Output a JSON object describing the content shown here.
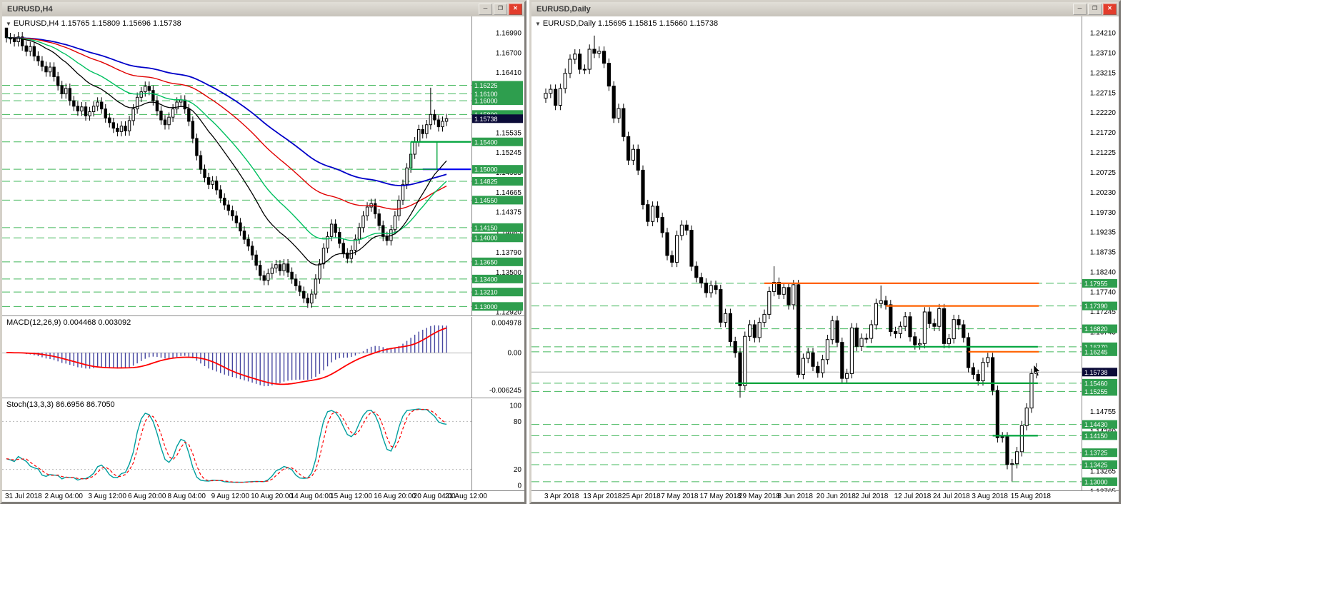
{
  "colors": {
    "level_dash": "#43b85c",
    "badge_green": "#2e9e4e",
    "badge_current": "#0b0b38",
    "green": "#00a43c",
    "orange": "#ff6200",
    "blue": "#0000f0",
    "macd_bar": "#4646a0",
    "stoch_main": "#009e9e"
  },
  "windows": [
    {
      "title": "EURUSD,H4",
      "buttons": {
        "minimize": "─",
        "restore": "❐",
        "close": "✕"
      },
      "header_line": "EURUSD,H4  1.15765 1.15809 1.15696 1.15738",
      "indicators": [
        {
          "label": "MACD(12,26,9) 0.004468 0.003092",
          "axis": [
            "0.004978",
            "0.00",
            "-0.006245"
          ]
        },
        {
          "label": "Stoch(13,3,3) 86.6956 86.7050",
          "axis": [
            "100",
            "80",
            "20",
            "0"
          ]
        }
      ]
    },
    {
      "title": "EURUSD,Daily",
      "buttons": {
        "minimize": "─",
        "restore": "❐",
        "close": "✕"
      },
      "header_line": "EURUSD,Daily  1.15695 1.15815 1.15660 1.15738"
    }
  ],
  "chart_data": [
    {
      "type": "candlestick",
      "title": "EURUSD H4",
      "timeframe": "H4",
      "ylim": [
        1.1289,
        1.1713
      ],
      "current_price": 1.15738,
      "open_first": 1.1706,
      "default_wick": 0.0007,
      "closes": [
        1.1692,
        1.169,
        1.1686,
        1.1693,
        1.168,
        1.1672,
        1.1679,
        1.1665,
        1.1658,
        1.165,
        1.1642,
        1.1649,
        1.1635,
        1.1622,
        1.161,
        1.1618,
        1.16,
        1.1592,
        1.1585,
        1.1591,
        1.1578,
        1.1584,
        1.1592,
        1.1598,
        1.1588,
        1.1575,
        1.1568,
        1.156,
        1.1555,
        1.1563,
        1.1556,
        1.1571,
        1.1588,
        1.1605,
        1.1613,
        1.1621,
        1.1615,
        1.16,
        1.1585,
        1.1572,
        1.1565,
        1.1576,
        1.1588,
        1.1598,
        1.1601,
        1.1588,
        1.157,
        1.1545,
        1.152,
        1.15,
        1.1488,
        1.1478,
        1.1483,
        1.147,
        1.1458,
        1.1448,
        1.144,
        1.1432,
        1.1422,
        1.141,
        1.1398,
        1.1388,
        1.1375,
        1.136,
        1.1345,
        1.1338,
        1.1348,
        1.1356,
        1.1361,
        1.1352,
        1.1362,
        1.135,
        1.134,
        1.133,
        1.1322,
        1.1312,
        1.1305,
        1.1318,
        1.134,
        1.1362,
        1.1385,
        1.1402,
        1.142,
        1.1408,
        1.1392,
        1.1378,
        1.137,
        1.1382,
        1.1398,
        1.1415,
        1.1432,
        1.1445,
        1.145,
        1.1435,
        1.1418,
        1.1402,
        1.1396,
        1.1412,
        1.1432,
        1.1455,
        1.1478,
        1.1502,
        1.1522,
        1.154,
        1.1558,
        1.1552,
        1.1565,
        1.158,
        1.1572,
        1.1562,
        1.157,
        1.15738
      ],
      "wick_overrides": {
        "0": {
          "high": 1.1706
        },
        "76": {
          "low": 1.1298
        },
        "107": {
          "high": 1.1619
        }
      },
      "axis_labels": [
        "1.16990",
        "1.16700",
        "1.16410",
        "1.16120",
        "1.15825",
        "1.15535",
        "1.15245",
        "1.14955",
        "1.14665",
        "1.14375",
        "1.14085",
        "1.13790",
        "1.13500",
        "1.13210",
        "1.12920"
      ],
      "levels": [
        1.16225,
        1.161,
        1.16,
        1.158,
        1.154,
        1.15,
        1.14825,
        1.1455,
        1.1415,
        1.14,
        1.1365,
        1.134,
        1.1321,
        1.13
      ],
      "solid_lines": [
        {
          "price": 1.154,
          "from": 102,
          "to": 118,
          "color": "green"
        },
        {
          "price": 1.15,
          "from": 105,
          "to": 119,
          "color": "blue"
        }
      ],
      "rects": [
        {
          "from": 102,
          "to": 108.6,
          "p1": 1.154,
          "p2": 1.15,
          "color": "green"
        }
      ],
      "timeline": {
        "indices": [
          0,
          10,
          21,
          31,
          41,
          52,
          62,
          72,
          82,
          93,
          103,
          111
        ],
        "labels": [
          "31 Jul 2018",
          "2 Aug 04:00",
          "3 Aug 12:00",
          "6 Aug 20:00",
          "8 Aug 04:00",
          "9 Aug 12:00",
          "10 Aug 20:00",
          "14 Aug 04:00",
          "15 Aug 12:00",
          "16 Aug 20:00",
          "20 Aug 04:00",
          "21 Aug 12:00"
        ]
      }
    },
    {
      "type": "candlestick",
      "title": "EURUSD Daily",
      "timeframe": "Daily",
      "ylim": [
        1.1276,
        1.2421
      ],
      "current_price": 1.15738,
      "open_first": 1.2258,
      "default_wick": 0.0012,
      "closes": [
        1.227,
        1.228,
        1.224,
        1.2282,
        1.232,
        1.2355,
        1.2368,
        1.233,
        1.233,
        1.238,
        1.237,
        1.2375,
        1.2345,
        1.2288,
        1.2208,
        1.2232,
        1.2162,
        1.2103,
        1.213,
        1.2078,
        1.1992,
        1.195,
        1.1988,
        1.196,
        1.1922,
        1.1865,
        1.1848,
        1.1915,
        1.1941,
        1.1928,
        1.1838,
        1.181,
        1.1796,
        1.1772,
        1.179,
        1.178,
        1.1698,
        1.172,
        1.165,
        1.1622,
        1.154,
        1.1663,
        1.1692,
        1.166,
        1.1698,
        1.1718,
        1.1775,
        1.1798,
        1.1768,
        1.1785,
        1.1742,
        1.1792,
        1.1568,
        1.1608,
        1.1622,
        1.1588,
        1.1572,
        1.1605,
        1.1655,
        1.1702,
        1.1648,
        1.1558,
        1.157,
        1.1684,
        1.1638,
        1.1658,
        1.1658,
        1.1692,
        1.1745,
        1.1752,
        1.1742,
        1.1675,
        1.167,
        1.1688,
        1.1712,
        1.1662,
        1.1642,
        1.1645,
        1.1724,
        1.1695,
        1.1688,
        1.1732,
        1.1645,
        1.1657,
        1.1705,
        1.1692,
        1.166,
        1.1585,
        1.1568,
        1.1552,
        1.1598,
        1.161,
        1.1528,
        1.141,
        1.1412,
        1.1343,
        1.1345,
        1.1375,
        1.144,
        1.1484,
        1.157,
        1.15738
      ],
      "wick_overrides": {
        "10": {
          "high": 1.2414
        },
        "40": {
          "low": 1.151
        },
        "47": {
          "high": 1.1838
        },
        "52": {
          "low": 1.156
        },
        "69": {
          "high": 1.179
        },
        "96": {
          "low": 1.1301
        },
        "101": {
          "high": 1.1596
        }
      },
      "axis_labels": [
        "1.24210",
        "1.23710",
        "1.23215",
        "1.22715",
        "1.22220",
        "1.21720",
        "1.21225",
        "1.20725",
        "1.20230",
        "1.19730",
        "1.19235",
        "1.18735",
        "1.18240",
        "1.17740",
        "1.17245",
        "1.16745",
        "1.16250",
        "1.15750",
        "1.15255",
        "1.14755",
        "1.14260",
        "1.13760",
        "1.13265",
        "1.12765"
      ],
      "levels": [
        1.17955,
        1.1739,
        1.1682,
        1.1637,
        1.16245,
        1.1546,
        1.15255,
        1.1443,
        1.1415,
        1.13725,
        1.13425,
        1.13
      ],
      "solid_lines": [
        {
          "price": 1.17955,
          "from": 45,
          "to": 101.5,
          "color": "orange"
        },
        {
          "price": 1.1739,
          "from": 70,
          "to": 101.5,
          "color": "orange"
        },
        {
          "price": 1.16245,
          "from": 87,
          "to": 101.5,
          "color": "orange"
        },
        {
          "price": 1.1637,
          "from": 66,
          "to": 101.3,
          "color": "green"
        },
        {
          "price": 1.1546,
          "from": 39,
          "to": 101.3,
          "color": "green"
        },
        {
          "price": 1.1415,
          "from": 92,
          "to": 101.3,
          "color": "green"
        }
      ],
      "timeline": {
        "indices": [
          0,
          8,
          16,
          24,
          32,
          40,
          48,
          56,
          64,
          72,
          80,
          88,
          96
        ],
        "labels": [
          "3 Apr 2018",
          "13 Apr 2018",
          "25 Apr 2018",
          "7 May 2018",
          "17 May 2018",
          "29 May 2018",
          "8 Jun 2018",
          "20 Jun 2018",
          "2 Jul 2018",
          "12 Jul 2018",
          "24 Jul 2018",
          "3 Aug 2018",
          "15 Aug 2018"
        ]
      }
    }
  ]
}
